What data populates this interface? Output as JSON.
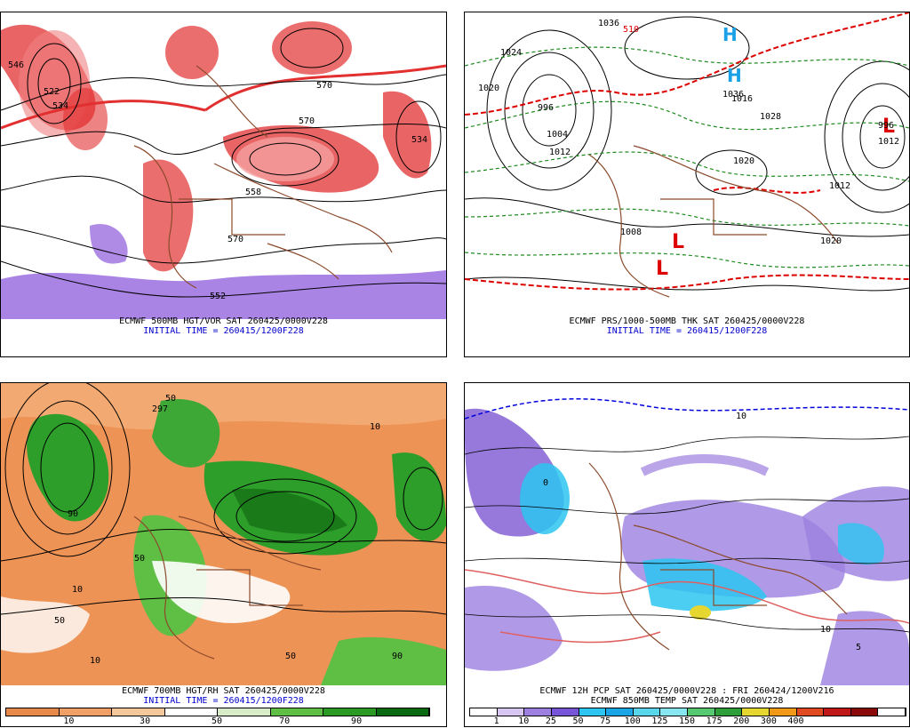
{
  "panels": [
    {
      "id": "p1",
      "line1": "ECMWF 500MB HGT/VOR SAT 260425/0000V228",
      "line2": "INITIAL TIME = 260415/1200F228",
      "labels": [
        "546",
        "522",
        "534",
        "570",
        "558",
        "570",
        "552",
        "534",
        "570"
      ]
    },
    {
      "id": "p2",
      "line1": "ECMWF PRS/1000-500MB THK SAT 260425/0000V228",
      "line2": "INITIAL TIME = 260415/1200F228",
      "labels": [
        "1036",
        "510",
        "1024",
        "1020",
        "996",
        "1004",
        "1012",
        "1016",
        "1028",
        "1036",
        "1020",
        "1012",
        "1020",
        "1008",
        "996",
        "1012"
      ]
    },
    {
      "id": "p3",
      "line1": "ECMWF 700MB HGT/RH SAT 260425/0000V228",
      "line2": "INITIAL TIME = 260415/1200F228",
      "labels": [
        "50",
        "297",
        "10",
        "90",
        "50",
        "10",
        "50",
        "10",
        "90",
        "50"
      ]
    },
    {
      "id": "p4",
      "line1": "ECMWF 12H PCP SAT 260425/0000V228 : FRI 260424/1200V216",
      "line2": "ECMWF 850MB TEMP SAT 260425/0000V228",
      "labels": [
        "10",
        "0",
        "10",
        "5"
      ]
    }
  ],
  "rh_colorbar": {
    "colors": [
      "#e8894c",
      "#f0a066",
      "#f5c79a",
      "#ffffff",
      "#d8ecc8",
      "#5fbf44",
      "#2a9a24",
      "#0a6a12"
    ],
    "labels": [
      "10",
      "30",
      "50",
      "70",
      "90"
    ]
  },
  "pcp_colorbar": {
    "colors": [
      "#ffffff",
      "#d7c6f2",
      "#9c7fe0",
      "#7755d8",
      "#2cc6f0",
      "#1aa6e6",
      "#59d6ec",
      "#88e6f0",
      "#56c870",
      "#2e9e38",
      "#e6d630",
      "#f09a18",
      "#e04a20",
      "#c01818",
      "#8a0a0a",
      "#ffffff"
    ],
    "labels": [
      "1",
      "10",
      "25",
      "50",
      "75",
      "100",
      "125",
      "150",
      "175",
      "200",
      "300",
      "400"
    ]
  }
}
